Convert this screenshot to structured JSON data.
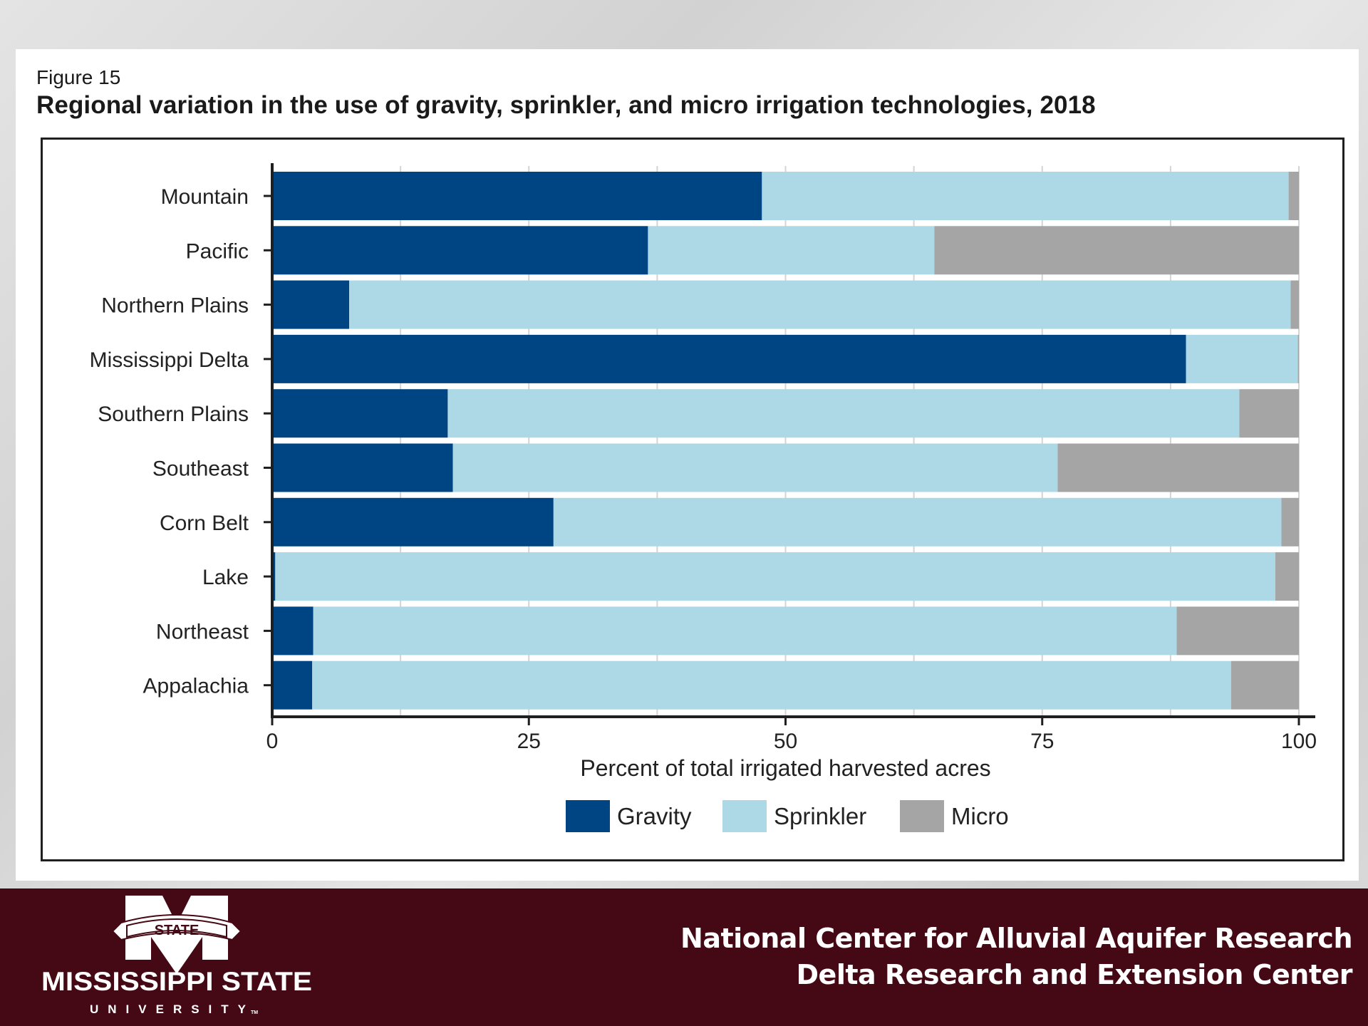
{
  "figure": {
    "label": "Figure 15",
    "title": "Regional variation in the use of gravity, sprinkler, and micro irrigation technologies, 2018"
  },
  "chart_data": {
    "type": "bar",
    "orientation": "horizontal",
    "stacked": true,
    "title": "Regional variation in the use of gravity, sprinkler, and micro irrigation technologies, 2018",
    "xlabel": "Percent of total irrigated harvested acres",
    "ylabel": "",
    "xlim": [
      0,
      100
    ],
    "xticks": [
      0,
      25,
      50,
      75,
      100
    ],
    "minor_gridlines": [
      12.5,
      37.5,
      62.5,
      87.5
    ],
    "grid": true,
    "legend_position": "bottom-center",
    "categories": [
      "Mountain",
      "Pacific",
      "Northern Plains",
      "Mississippi Delta",
      "Southern Plains",
      "Southeast",
      "Corn Belt",
      "Lake",
      "Northeast",
      "Appalachia"
    ],
    "series": [
      {
        "name": "Gravity",
        "color": "#004583",
        "values": [
          47.7,
          36.6,
          7.5,
          89.0,
          17.1,
          17.6,
          27.4,
          0.3,
          4.0,
          3.9
        ]
      },
      {
        "name": "Sprinkler",
        "color": "#add8e6",
        "values": [
          51.3,
          27.9,
          91.7,
          10.9,
          77.1,
          58.9,
          70.9,
          97.4,
          84.1,
          89.5
        ]
      },
      {
        "name": "Micro",
        "color": "#a5a5a5",
        "values": [
          1.0,
          35.5,
          0.8,
          0.1,
          5.8,
          23.5,
          1.7,
          2.3,
          11.9,
          6.6
        ]
      }
    ]
  },
  "banner": {
    "logo_banner_text": "STATE",
    "logo_name": "MISSISSIPPI STATE",
    "logo_sub": "UNIVERSITY",
    "logo_tm": "TM",
    "line1": "National Center for Alluvial Aquifer Research",
    "line2": "Delta Research and Extension Center",
    "color": "#440914"
  }
}
